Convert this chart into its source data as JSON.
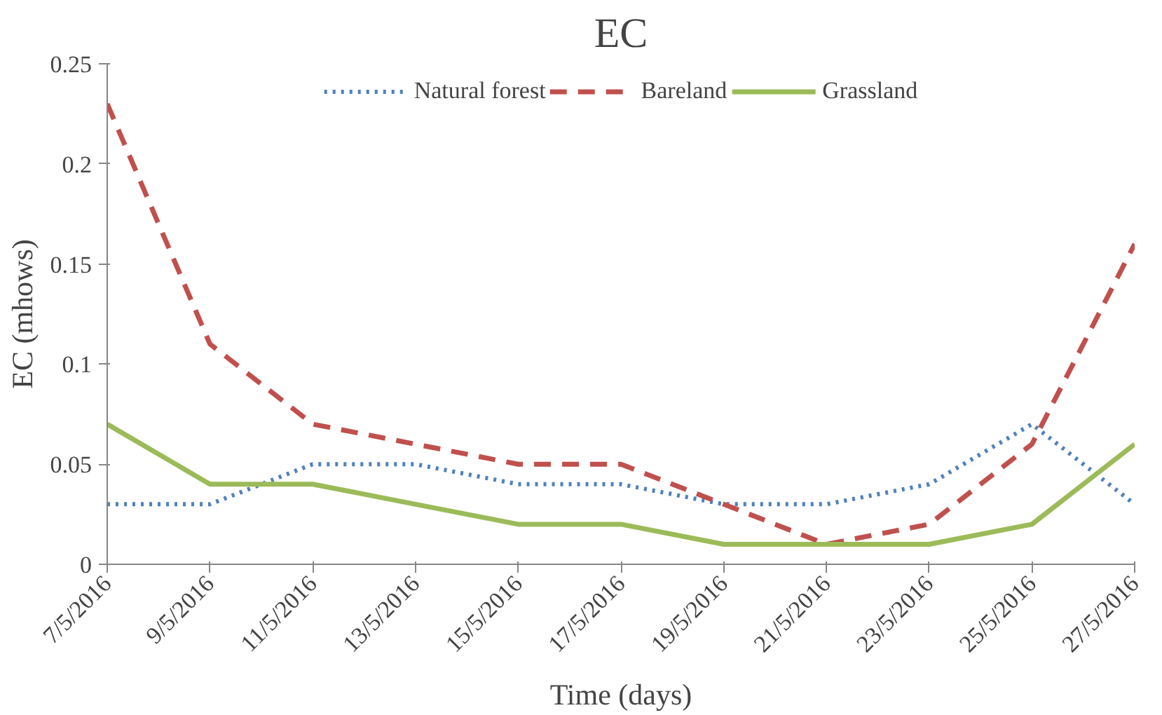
{
  "chart_data": {
    "type": "line",
    "title": "EC",
    "xlabel": "Time (days)",
    "ylabel": "EC (mhows)",
    "categories": [
      "7/5/2016",
      "9/5/2016",
      "11/5/2016",
      "13/5/2016",
      "15/5/2016",
      "17/5/2016",
      "19/5/2016",
      "21/5/2016",
      "23/5/2016",
      "25/5/2016",
      "27/5/2016"
    ],
    "series": [
      {
        "name": "Natural forest",
        "color": "#4f81bd",
        "line_style": "dotted",
        "values": [
          0.03,
          0.03,
          0.05,
          0.05,
          0.04,
          0.04,
          0.03,
          0.03,
          0.04,
          0.07,
          0.03
        ]
      },
      {
        "name": "Bareland",
        "color": "#c0504d",
        "line_style": "dashed",
        "values": [
          0.23,
          0.11,
          0.07,
          0.06,
          0.05,
          0.05,
          0.03,
          0.01,
          0.02,
          0.06,
          0.16
        ]
      },
      {
        "name": "Grassland",
        "color": "#9bbb59",
        "line_style": "solid",
        "values": [
          0.07,
          0.04,
          0.04,
          0.03,
          0.02,
          0.02,
          0.01,
          0.01,
          0.01,
          0.02,
          0.06
        ]
      }
    ],
    "ylim": [
      0,
      0.25
    ],
    "yticks": [
      0,
      0.05,
      {
        "value": 0.1,
        "label": "0.1"
      },
      0.15,
      {
        "value": 0.2,
        "label": "0.2"
      },
      0.25
    ],
    "grid": false,
    "legend": "top",
    "marker": "none"
  }
}
